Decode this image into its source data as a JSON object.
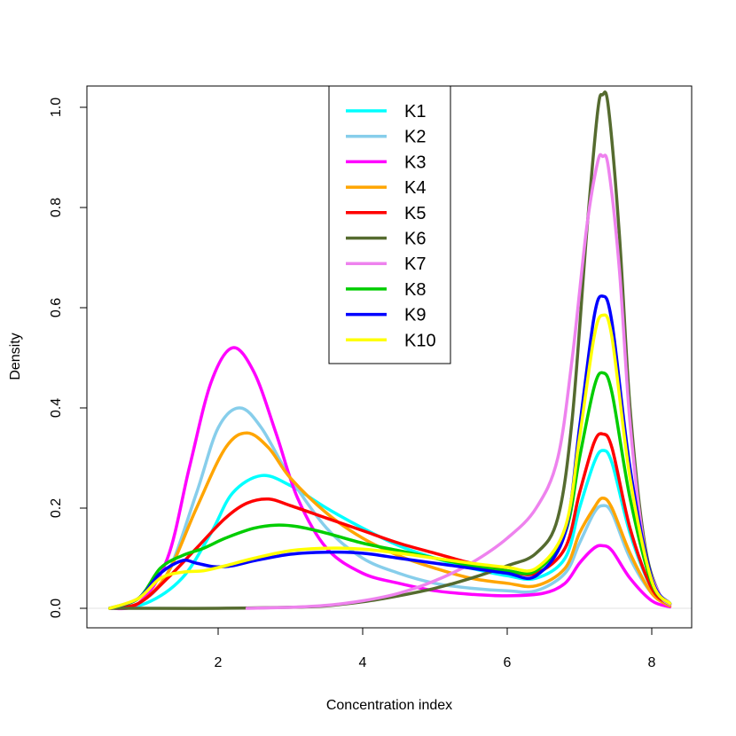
{
  "chart_data": {
    "type": "line",
    "xlabel": "Concentration index",
    "ylabel": "Density",
    "xlim": [
      0.4,
      8.4
    ],
    "ylim": [
      -0.04,
      1.06
    ],
    "x_ticks": [
      2,
      4,
      6,
      8
    ],
    "y_ticks": [
      0.0,
      0.2,
      0.4,
      0.6,
      0.8,
      1.0
    ],
    "x_tick_labels": [
      "2",
      "4",
      "6",
      "8"
    ],
    "y_tick_labels": [
      "0.0",
      "0.2",
      "0.4",
      "0.6",
      "0.8",
      "1.0"
    ],
    "legend_position": "top-center",
    "series": [
      {
        "name": "K1",
        "color": "#00FFFF",
        "points": [
          [
            0.5,
            0
          ],
          [
            1.0,
            0.01
          ],
          [
            1.5,
            0.06
          ],
          [
            1.9,
            0.15
          ],
          [
            2.2,
            0.23
          ],
          [
            2.6,
            0.265
          ],
          [
            3.0,
            0.245
          ],
          [
            3.5,
            0.2
          ],
          [
            4.0,
            0.16
          ],
          [
            4.5,
            0.125
          ],
          [
            5.0,
            0.1
          ],
          [
            5.5,
            0.08
          ],
          [
            6.0,
            0.065
          ],
          [
            6.4,
            0.06
          ],
          [
            6.8,
            0.1
          ],
          [
            7.0,
            0.2
          ],
          [
            7.2,
            0.29
          ],
          [
            7.32,
            0.315
          ],
          [
            7.45,
            0.29
          ],
          [
            7.7,
            0.15
          ],
          [
            8.0,
            0.04
          ],
          [
            8.25,
            0.01
          ]
        ]
      },
      {
        "name": "K2",
        "color": "#87CEEB",
        "points": [
          [
            0.5,
            0
          ],
          [
            0.9,
            0.01
          ],
          [
            1.3,
            0.07
          ],
          [
            1.7,
            0.23
          ],
          [
            2.0,
            0.36
          ],
          [
            2.3,
            0.4
          ],
          [
            2.6,
            0.36
          ],
          [
            3.0,
            0.26
          ],
          [
            3.5,
            0.16
          ],
          [
            4.0,
            0.1
          ],
          [
            4.5,
            0.07
          ],
          [
            5.0,
            0.05
          ],
          [
            5.5,
            0.04
          ],
          [
            6.0,
            0.035
          ],
          [
            6.4,
            0.035
          ],
          [
            6.8,
            0.07
          ],
          [
            7.0,
            0.13
          ],
          [
            7.2,
            0.19
          ],
          [
            7.32,
            0.205
          ],
          [
            7.45,
            0.19
          ],
          [
            7.7,
            0.1
          ],
          [
            8.0,
            0.03
          ],
          [
            8.25,
            0.005
          ]
        ]
      },
      {
        "name": "K3",
        "color": "#FF00FF",
        "points": [
          [
            0.5,
            0
          ],
          [
            0.9,
            0.01
          ],
          [
            1.3,
            0.1
          ],
          [
            1.6,
            0.28
          ],
          [
            1.9,
            0.45
          ],
          [
            2.2,
            0.52
          ],
          [
            2.5,
            0.47
          ],
          [
            2.8,
            0.35
          ],
          [
            3.1,
            0.22
          ],
          [
            3.5,
            0.12
          ],
          [
            4.0,
            0.07
          ],
          [
            4.5,
            0.05
          ],
          [
            5.0,
            0.035
          ],
          [
            5.5,
            0.028
          ],
          [
            6.0,
            0.025
          ],
          [
            6.5,
            0.03
          ],
          [
            6.8,
            0.05
          ],
          [
            7.0,
            0.09
          ],
          [
            7.2,
            0.12
          ],
          [
            7.32,
            0.125
          ],
          [
            7.45,
            0.115
          ],
          [
            7.7,
            0.06
          ],
          [
            8.0,
            0.015
          ],
          [
            8.25,
            0.003
          ]
        ]
      },
      {
        "name": "K4",
        "color": "#FFA500",
        "points": [
          [
            0.5,
            0
          ],
          [
            0.9,
            0.01
          ],
          [
            1.3,
            0.07
          ],
          [
            1.7,
            0.2
          ],
          [
            2.1,
            0.32
          ],
          [
            2.4,
            0.35
          ],
          [
            2.7,
            0.32
          ],
          [
            3.0,
            0.26
          ],
          [
            3.5,
            0.19
          ],
          [
            4.0,
            0.14
          ],
          [
            4.5,
            0.105
          ],
          [
            5.0,
            0.08
          ],
          [
            5.5,
            0.06
          ],
          [
            6.0,
            0.05
          ],
          [
            6.4,
            0.045
          ],
          [
            6.8,
            0.08
          ],
          [
            7.0,
            0.15
          ],
          [
            7.2,
            0.2
          ],
          [
            7.32,
            0.22
          ],
          [
            7.45,
            0.2
          ],
          [
            7.7,
            0.11
          ],
          [
            8.0,
            0.03
          ],
          [
            8.25,
            0.005
          ]
        ]
      },
      {
        "name": "K5",
        "color": "#FF0000",
        "points": [
          [
            0.5,
            0
          ],
          [
            0.9,
            0.01
          ],
          [
            1.3,
            0.06
          ],
          [
            1.7,
            0.12
          ],
          [
            2.1,
            0.18
          ],
          [
            2.4,
            0.21
          ],
          [
            2.7,
            0.218
          ],
          [
            3.0,
            0.205
          ],
          [
            3.5,
            0.18
          ],
          [
            4.0,
            0.155
          ],
          [
            4.5,
            0.13
          ],
          [
            5.0,
            0.11
          ],
          [
            5.5,
            0.09
          ],
          [
            6.0,
            0.075
          ],
          [
            6.4,
            0.07
          ],
          [
            6.8,
            0.12
          ],
          [
            7.0,
            0.23
          ],
          [
            7.2,
            0.33
          ],
          [
            7.32,
            0.348
          ],
          [
            7.45,
            0.32
          ],
          [
            7.7,
            0.16
          ],
          [
            8.0,
            0.04
          ],
          [
            8.25,
            0.008
          ]
        ]
      },
      {
        "name": "K6",
        "color": "#556B2F",
        "points": [
          [
            0.5,
            0
          ],
          [
            1.0,
            0
          ],
          [
            2.0,
            0
          ],
          [
            3.0,
            0.002
          ],
          [
            3.5,
            0.005
          ],
          [
            4.0,
            0.013
          ],
          [
            4.5,
            0.025
          ],
          [
            5.0,
            0.04
          ],
          [
            5.5,
            0.06
          ],
          [
            6.0,
            0.085
          ],
          [
            6.4,
            0.11
          ],
          [
            6.7,
            0.18
          ],
          [
            6.9,
            0.38
          ],
          [
            7.1,
            0.75
          ],
          [
            7.25,
            0.99
          ],
          [
            7.32,
            1.025
          ],
          [
            7.4,
            1.0
          ],
          [
            7.55,
            0.75
          ],
          [
            7.7,
            0.4
          ],
          [
            7.9,
            0.13
          ],
          [
            8.1,
            0.03
          ],
          [
            8.25,
            0.008
          ]
        ]
      },
      {
        "name": "K7",
        "color": "#EE82EE",
        "points": [
          [
            2.4,
            0
          ],
          [
            3.0,
            0.002
          ],
          [
            3.5,
            0.006
          ],
          [
            4.0,
            0.015
          ],
          [
            4.5,
            0.03
          ],
          [
            5.0,
            0.055
          ],
          [
            5.5,
            0.09
          ],
          [
            6.0,
            0.14
          ],
          [
            6.4,
            0.2
          ],
          [
            6.7,
            0.3
          ],
          [
            6.9,
            0.5
          ],
          [
            7.1,
            0.76
          ],
          [
            7.25,
            0.89
          ],
          [
            7.32,
            0.902
          ],
          [
            7.4,
            0.88
          ],
          [
            7.55,
            0.68
          ],
          [
            7.7,
            0.37
          ],
          [
            7.9,
            0.12
          ],
          [
            8.1,
            0.03
          ],
          [
            8.25,
            0.008
          ]
        ]
      },
      {
        "name": "K8",
        "color": "#00CD00",
        "points": [
          [
            0.5,
            0
          ],
          [
            0.9,
            0.02
          ],
          [
            1.2,
            0.08
          ],
          [
            1.5,
            0.105
          ],
          [
            1.8,
            0.12
          ],
          [
            2.1,
            0.14
          ],
          [
            2.5,
            0.16
          ],
          [
            2.8,
            0.166
          ],
          [
            3.1,
            0.163
          ],
          [
            3.5,
            0.15
          ],
          [
            4.0,
            0.13
          ],
          [
            4.5,
            0.115
          ],
          [
            5.0,
            0.1
          ],
          [
            5.5,
            0.085
          ],
          [
            6.0,
            0.075
          ],
          [
            6.4,
            0.075
          ],
          [
            6.8,
            0.15
          ],
          [
            7.0,
            0.3
          ],
          [
            7.2,
            0.44
          ],
          [
            7.32,
            0.47
          ],
          [
            7.45,
            0.43
          ],
          [
            7.7,
            0.22
          ],
          [
            8.0,
            0.05
          ],
          [
            8.25,
            0.01
          ]
        ]
      },
      {
        "name": "K9",
        "color": "#0000FF",
        "points": [
          [
            0.5,
            0
          ],
          [
            0.9,
            0.02
          ],
          [
            1.2,
            0.07
          ],
          [
            1.5,
            0.095
          ],
          [
            1.7,
            0.09
          ],
          [
            1.95,
            0.083
          ],
          [
            2.2,
            0.085
          ],
          [
            2.5,
            0.095
          ],
          [
            3.0,
            0.108
          ],
          [
            3.5,
            0.112
          ],
          [
            4.0,
            0.11
          ],
          [
            4.5,
            0.1
          ],
          [
            5.0,
            0.09
          ],
          [
            5.5,
            0.08
          ],
          [
            6.0,
            0.07
          ],
          [
            6.4,
            0.065
          ],
          [
            6.8,
            0.15
          ],
          [
            7.0,
            0.36
          ],
          [
            7.2,
            0.58
          ],
          [
            7.32,
            0.623
          ],
          [
            7.45,
            0.57
          ],
          [
            7.7,
            0.28
          ],
          [
            8.0,
            0.06
          ],
          [
            8.25,
            0.01
          ]
        ]
      },
      {
        "name": "K10",
        "color": "#FFFF00",
        "points": [
          [
            0.5,
            0
          ],
          [
            0.9,
            0.02
          ],
          [
            1.2,
            0.06
          ],
          [
            1.5,
            0.072
          ],
          [
            1.8,
            0.075
          ],
          [
            2.1,
            0.085
          ],
          [
            2.5,
            0.1
          ],
          [
            3.0,
            0.115
          ],
          [
            3.5,
            0.12
          ],
          [
            4.0,
            0.118
          ],
          [
            4.5,
            0.11
          ],
          [
            5.0,
            0.1
          ],
          [
            5.5,
            0.09
          ],
          [
            6.0,
            0.082
          ],
          [
            6.4,
            0.08
          ],
          [
            6.8,
            0.16
          ],
          [
            7.0,
            0.34
          ],
          [
            7.2,
            0.54
          ],
          [
            7.32,
            0.585
          ],
          [
            7.45,
            0.54
          ],
          [
            7.7,
            0.26
          ],
          [
            8.0,
            0.055
          ],
          [
            8.25,
            0.01
          ]
        ]
      }
    ]
  }
}
